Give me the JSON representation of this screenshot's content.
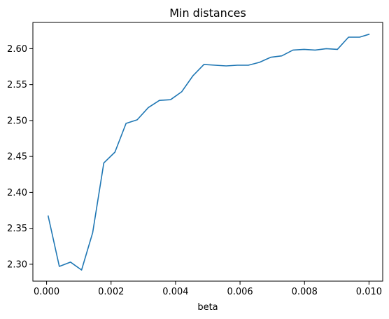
{
  "chart_data": {
    "type": "line",
    "title": "Min distances",
    "xlabel": "beta",
    "ylabel": "",
    "xlim": [
      -0.000425,
      0.010425
    ],
    "ylim": [
      2.2765,
      2.6365
    ],
    "grid": false,
    "x_ticks": [
      0.0,
      0.002,
      0.004,
      0.006,
      0.008,
      0.01
    ],
    "x_tick_labels": [
      "0.000",
      "0.002",
      "0.004",
      "0.006",
      "0.008",
      "0.010"
    ],
    "y_ticks": [
      2.3,
      2.35,
      2.4,
      2.45,
      2.5,
      2.55,
      2.6
    ],
    "y_tick_labels": [
      "2.30",
      "2.35",
      "2.40",
      "2.45",
      "2.50",
      "2.55",
      "2.60"
    ],
    "series": [
      {
        "color": "#1f77b4",
        "x": [
          5e-05,
          0.000395,
          0.00074,
          0.001085,
          0.00143,
          0.001775,
          0.00212,
          0.002465,
          0.00281,
          0.003155,
          0.0035,
          0.003845,
          0.00419,
          0.004535,
          0.00488,
          0.005225,
          0.00557,
          0.005915,
          0.00626,
          0.006605,
          0.00695,
          0.007295,
          0.00764,
          0.007985,
          0.00833,
          0.008675,
          0.00902,
          0.009365,
          0.00971,
          0.01
        ],
        "y": [
          2.367,
          2.297,
          2.303,
          2.292,
          2.344,
          2.441,
          2.456,
          2.496,
          2.501,
          2.518,
          2.528,
          2.529,
          2.54,
          2.562,
          2.578,
          2.577,
          2.576,
          2.577,
          2.577,
          2.581,
          2.588,
          2.59,
          2.598,
          2.599,
          2.598,
          2.6,
          2.599,
          2.616,
          2.616,
          2.62
        ]
      }
    ]
  }
}
